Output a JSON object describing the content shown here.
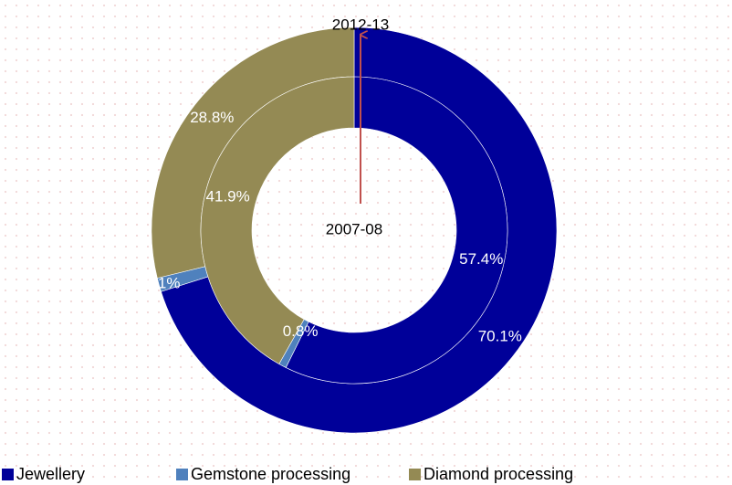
{
  "chart_data": {
    "type": "donut",
    "categories": [
      "Jewellery",
      "Gemstone processing",
      "Diamond processing"
    ],
    "colors": [
      "#000099",
      "#4f81bd",
      "#948a54"
    ],
    "series": [
      {
        "name": "2012-13",
        "values": [
          70.1,
          1.1,
          28.8
        ],
        "value_labels": [
          "70.1%",
          "1.1%",
          "28.8%"
        ]
      },
      {
        "name": "2007-08",
        "values": [
          57.4,
          0.8,
          41.9
        ],
        "value_labels": [
          "57.4%",
          "0.8%",
          "41.9%"
        ]
      }
    ],
    "legend": "bottom"
  }
}
